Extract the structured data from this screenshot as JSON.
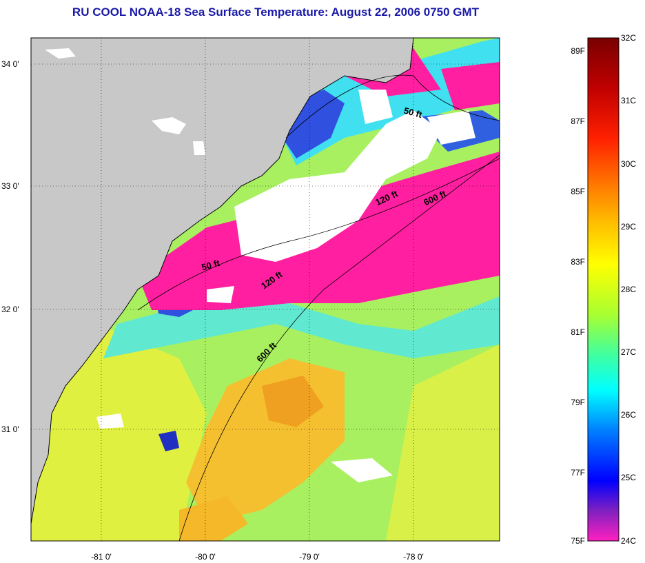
{
  "title": "RU COOL  NOAA-18  Sea Surface Temperature:  August 22, 2006 0750 GMT",
  "map": {
    "lat_labels": [
      "34 0'",
      "33 0'",
      "32 0'",
      "31 0'"
    ],
    "lon_labels": [
      "-81 0'",
      "-80 0'",
      "-79 0'",
      "-78 0'"
    ],
    "contour_labels": [
      "50 ft",
      "120 ft",
      "600 ft",
      "50 ft",
      "120 ft",
      "600 ft"
    ],
    "colors": {
      "land": "#c8c8c8",
      "cloud": "#ffffff",
      "warm": "#f0a020",
      "mid": "#c0ee40",
      "cool": "#28d8e0",
      "cold": "#3050e0",
      "coldest": "#ff1fa0"
    }
  },
  "colorbar": {
    "celsius_labels": [
      "32C",
      "31C",
      "30C",
      "29C",
      "28C",
      "27C",
      "26C",
      "25C",
      "24C"
    ],
    "fahrenheit_labels": [
      "89F",
      "87F",
      "85F",
      "83F",
      "81F",
      "79F",
      "77F",
      "75F"
    ],
    "stops": [
      "#7a0000",
      "#c00000",
      "#ff2000",
      "#ff8000",
      "#ffc000",
      "#ffff00",
      "#a8ff30",
      "#40ffa0",
      "#00ffff",
      "#0080ff",
      "#0000ff",
      "#8020c0",
      "#ff20c0"
    ]
  }
}
